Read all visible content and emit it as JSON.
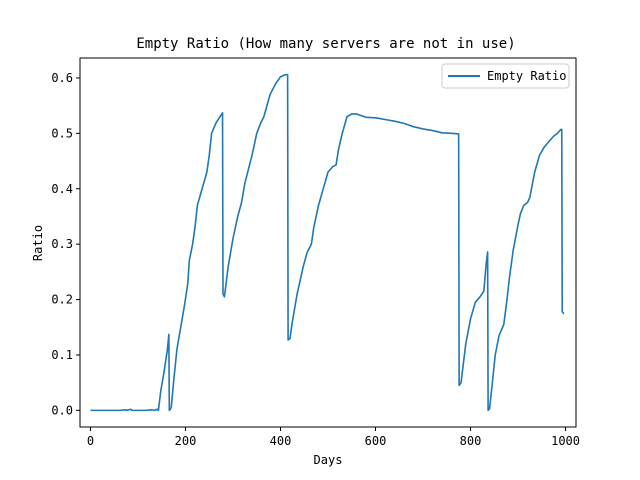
{
  "chart_data": {
    "type": "line",
    "title": "Empty Ratio (How many servers are not in use)",
    "xlabel": "Days",
    "ylabel": "Ratio",
    "xlim": [
      -22,
      1022
    ],
    "ylim": [
      -0.03,
      0.636
    ],
    "xticks": [
      0,
      200,
      400,
      600,
      800,
      1000
    ],
    "yticks": [
      0.0,
      0.1,
      0.2,
      0.3,
      0.4,
      0.5,
      0.6
    ],
    "xtick_labels": [
      "0",
      "200",
      "400",
      "600",
      "800",
      "1000"
    ],
    "ytick_labels": [
      "0.0",
      "0.1",
      "0.2",
      "0.3",
      "0.4",
      "0.5",
      "0.6"
    ],
    "grid": false,
    "legend": {
      "position": "top-right",
      "entries": [
        "Empty Ratio"
      ]
    },
    "series": [
      {
        "name": "Empty Ratio",
        "color": "#1f77b4",
        "points": [
          [
            0,
            0.0
          ],
          [
            30,
            0.0
          ],
          [
            60,
            0.0
          ],
          [
            75,
            0.001
          ],
          [
            77,
            0.0
          ],
          [
            85,
            0.002
          ],
          [
            87,
            0.0
          ],
          [
            100,
            0.0
          ],
          [
            115,
            0.0
          ],
          [
            128,
            0.001
          ],
          [
            135,
            0.0
          ],
          [
            140,
            0.002
          ],
          [
            143,
            0.0
          ],
          [
            148,
            0.035
          ],
          [
            155,
            0.07
          ],
          [
            162,
            0.11
          ],
          [
            165,
            0.137
          ],
          [
            166,
            0.0
          ],
          [
            170,
            0.005
          ],
          [
            176,
            0.06
          ],
          [
            182,
            0.11
          ],
          [
            190,
            0.15
          ],
          [
            198,
            0.19
          ],
          [
            205,
            0.23
          ],
          [
            208,
            0.27
          ],
          [
            215,
            0.3
          ],
          [
            220,
            0.33
          ],
          [
            225,
            0.37
          ],
          [
            235,
            0.4
          ],
          [
            245,
            0.43
          ],
          [
            250,
            0.46
          ],
          [
            255,
            0.5
          ],
          [
            265,
            0.52
          ],
          [
            278,
            0.537
          ],
          [
            279,
            0.21
          ],
          [
            282,
            0.205
          ],
          [
            290,
            0.26
          ],
          [
            300,
            0.31
          ],
          [
            310,
            0.35
          ],
          [
            318,
            0.375
          ],
          [
            325,
            0.41
          ],
          [
            340,
            0.46
          ],
          [
            350,
            0.5
          ],
          [
            358,
            0.518
          ],
          [
            365,
            0.53
          ],
          [
            378,
            0.57
          ],
          [
            390,
            0.59
          ],
          [
            400,
            0.602
          ],
          [
            410,
            0.606
          ],
          [
            415,
            0.606
          ],
          [
            416,
            0.127
          ],
          [
            420,
            0.13
          ],
          [
            425,
            0.16
          ],
          [
            435,
            0.21
          ],
          [
            448,
            0.26
          ],
          [
            456,
            0.285
          ],
          [
            465,
            0.3
          ],
          [
            470,
            0.33
          ],
          [
            480,
            0.37
          ],
          [
            490,
            0.4
          ],
          [
            500,
            0.43
          ],
          [
            510,
            0.44
          ],
          [
            517,
            0.443
          ],
          [
            522,
            0.47
          ],
          [
            530,
            0.5
          ],
          [
            540,
            0.53
          ],
          [
            550,
            0.535
          ],
          [
            560,
            0.535
          ],
          [
            570,
            0.532
          ],
          [
            580,
            0.529
          ],
          [
            600,
            0.528
          ],
          [
            620,
            0.525
          ],
          [
            640,
            0.522
          ],
          [
            660,
            0.518
          ],
          [
            680,
            0.512
          ],
          [
            700,
            0.508
          ],
          [
            720,
            0.505
          ],
          [
            740,
            0.501
          ],
          [
            760,
            0.5
          ],
          [
            775,
            0.499
          ],
          [
            776,
            0.045
          ],
          [
            780,
            0.05
          ],
          [
            785,
            0.085
          ],
          [
            790,
            0.12
          ],
          [
            800,
            0.165
          ],
          [
            810,
            0.195
          ],
          [
            820,
            0.205
          ],
          [
            828,
            0.215
          ],
          [
            833,
            0.265
          ],
          [
            836,
            0.286
          ],
          [
            837,
            0.0
          ],
          [
            840,
            0.003
          ],
          [
            846,
            0.05
          ],
          [
            852,
            0.1
          ],
          [
            860,
            0.135
          ],
          [
            870,
            0.155
          ],
          [
            876,
            0.195
          ],
          [
            882,
            0.24
          ],
          [
            890,
            0.29
          ],
          [
            900,
            0.335
          ],
          [
            905,
            0.355
          ],
          [
            912,
            0.37
          ],
          [
            920,
            0.375
          ],
          [
            925,
            0.385
          ],
          [
            935,
            0.43
          ],
          [
            945,
            0.46
          ],
          [
            955,
            0.475
          ],
          [
            965,
            0.485
          ],
          [
            975,
            0.495
          ],
          [
            983,
            0.5
          ],
          [
            990,
            0.507
          ],
          [
            992,
            0.507
          ],
          [
            993,
            0.178
          ],
          [
            996,
            0.175
          ],
          [
            997,
            0.175
          ]
        ]
      }
    ]
  }
}
